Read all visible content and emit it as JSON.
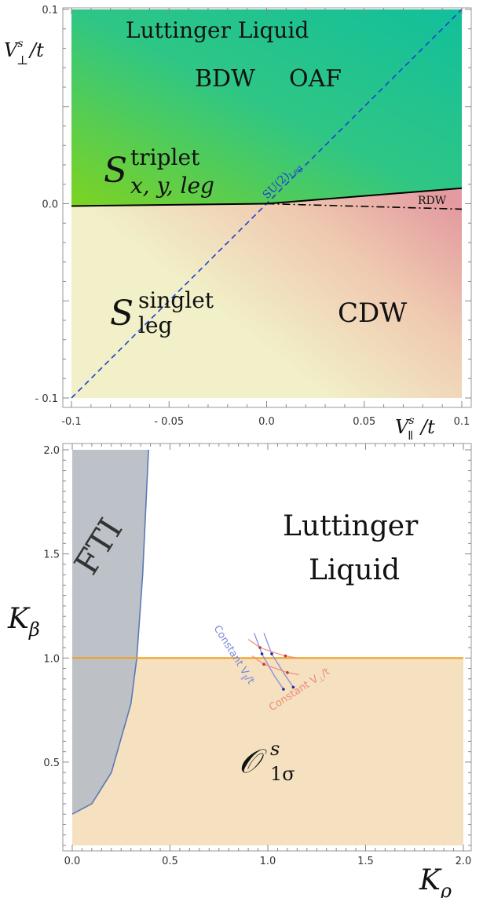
{
  "colors": {
    "ll_green_light": "#7ed321",
    "ll_green": "#12bf9b",
    "singlet_yellow": "#f1f0c8",
    "cdw_pink": "#e39aa0",
    "su2_line": "#1f3fd6",
    "k_line": "#f0a020",
    "fti_fill": "#b9bfc6",
    "fti_boundary": "#5b78b6",
    "o1s_fill": "#f5e1c0",
    "const_vpar": "#7a86d8",
    "const_vperp": "#ee8a7a"
  },
  "chart_data": [
    {
      "type": "area",
      "xlabel_base": "V",
      "xlabel_sup": "s",
      "xlabel_sub": "∥",
      "xlabel_tail": "/t",
      "ylabel_base": "V",
      "ylabel_sup": "s",
      "ylabel_sub": "⊥",
      "ylabel_tail": "/t",
      "xlim": [
        -0.1,
        0.1
      ],
      "ylim": [
        -0.1,
        0.1
      ],
      "x_ticks": [
        "-0.1",
        "- 0.05",
        "0.0",
        "0.05",
        "0.1"
      ],
      "y_ticks": [
        "0.1",
        "0.0",
        "- 0.1"
      ],
      "regions": {
        "luttinger": "Luttinger  Liquid",
        "bdw": "BDW",
        "oaf": "OAF",
        "triplet_base": "S",
        "triplet_sup": "triplet",
        "triplet_sub": "x, y, leg",
        "singlet_base": "S",
        "singlet_sup": "singlet",
        "singlet_sub": "leg",
        "cdw": "CDW",
        "rdw": "RDW"
      },
      "su2_base": "SU(2)",
      "su2_sub": "Leg",
      "lines": {
        "su2_diagonal": [
          [
            -0.1,
            -0.1
          ],
          [
            0.1,
            0.1
          ]
        ],
        "boundary_left": [
          [
            -0.1,
            -0.0012
          ],
          [
            0.0,
            0.0
          ]
        ],
        "boundary_upper_right": [
          [
            0.0,
            0.0
          ],
          [
            0.1,
            0.008
          ]
        ],
        "boundary_lower_right": [
          [
            0.0,
            0.0
          ],
          [
            0.1,
            -0.0028
          ]
        ]
      }
    },
    {
      "type": "area",
      "xlabel_base": "K",
      "xlabel_sub": "ρ",
      "ylabel_base": "K",
      "ylabel_sub": "β",
      "xlim": [
        0.0,
        2.0
      ],
      "ylim": [
        0.1,
        2.0
      ],
      "x_ticks": [
        "0.0",
        "0.5",
        "1.0",
        "1.5",
        "2.0"
      ],
      "y_ticks": [
        "2.0",
        "1.5",
        "1.0",
        "0.5"
      ],
      "regions": {
        "fti": "FTI",
        "luttinger_line1": "Luttinger",
        "luttinger_line2": "Liquid",
        "o1s_base": "𝒪",
        "o1s_sup": "s",
        "o1s_sub": "1σ"
      },
      "annotations": {
        "const_vpar_base": "Constant V",
        "const_vpar_sub": "∥",
        "const_vpar_tail": "/t",
        "const_vperp_base": "Constant V",
        "const_vperp_sub": "⊥",
        "const_vperp_tail": "/t"
      },
      "series": [
        {
          "name": "Constant V∥/t",
          "curves": [
            [
              [
                0.93,
                1.12
              ],
              [
                0.97,
                1.02
              ],
              [
                1.03,
                0.92
              ],
              [
                1.08,
                0.85
              ]
            ],
            [
              [
                0.98,
                1.12
              ],
              [
                1.02,
                1.02
              ],
              [
                1.08,
                0.93
              ],
              [
                1.13,
                0.86
              ]
            ]
          ]
        },
        {
          "name": "Constant V⊥/t",
          "curves": [
            [
              [
                0.9,
                1.09
              ],
              [
                0.96,
                1.05
              ],
              [
                1.02,
                1.03
              ],
              [
                1.09,
                1.01
              ],
              [
                1.15,
                1.0
              ]
            ],
            [
              [
                0.92,
                1.01
              ],
              [
                0.98,
                0.97
              ],
              [
                1.04,
                0.95
              ],
              [
                1.1,
                0.93
              ],
              [
                1.16,
                0.92
              ]
            ]
          ]
        }
      ],
      "k_equals_1": 1.0,
      "fti_boundary": [
        [
          0.0,
          0.25
        ],
        [
          0.1,
          0.3
        ],
        [
          0.2,
          0.45
        ],
        [
          0.3,
          0.78
        ],
        [
          0.33,
          1.0
        ],
        [
          0.36,
          1.4
        ],
        [
          0.39,
          2.0
        ]
      ]
    }
  ]
}
